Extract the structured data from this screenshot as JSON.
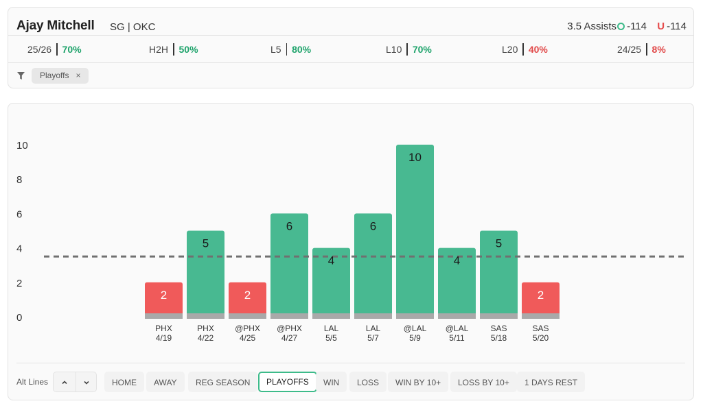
{
  "player": {
    "name": "Ajay Mitchell",
    "meta": "SG | OKC",
    "prop": "3.5 Assists",
    "over_odds": "-114",
    "under_odds": "-114",
    "over_icon": "over-circle-icon",
    "under_letter": "U"
  },
  "hit_rates": [
    {
      "label": "25/26",
      "value": "70%",
      "status": "good"
    },
    {
      "label": "H2H",
      "value": "50%",
      "status": "good"
    },
    {
      "label": "L5",
      "value": "80%",
      "status": "good"
    },
    {
      "label": "L10",
      "value": "70%",
      "status": "good"
    },
    {
      "label": "L20",
      "value": "40%",
      "status": "bad"
    },
    {
      "label": "24/25",
      "value": "8%",
      "status": "bad"
    }
  ],
  "filters": {
    "icon": "funnel-icon",
    "chip_label": "Playoffs",
    "chip_close": "×"
  },
  "colors": {
    "over": "#48b991",
    "under": "#f05a5a",
    "good_text": "#1ea36b",
    "bad_text": "#e14848",
    "line": "#707070"
  },
  "chart_data": {
    "type": "bar",
    "categories": [
      "PHX 4/19",
      "PHX 4/22",
      "@PHX 4/25",
      "@PHX 4/27",
      "LAL 5/5",
      "LAL 5/7",
      "@LAL 5/9",
      "@LAL 5/11",
      "SAS 5/18",
      "SAS 5/20"
    ],
    "opponents": [
      "PHX",
      "PHX",
      "@PHX",
      "@PHX",
      "LAL",
      "LAL",
      "@LAL",
      "@LAL",
      "SAS",
      "SAS"
    ],
    "dates": [
      "4/19",
      "4/22",
      "4/25",
      "4/27",
      "5/5",
      "5/7",
      "5/9",
      "5/11",
      "5/18",
      "5/20"
    ],
    "values": [
      2,
      5,
      2,
      6,
      4,
      6,
      10,
      4,
      5,
      2
    ],
    "line": 3.5,
    "ylim": [
      0,
      10
    ],
    "yticks": [
      0,
      2,
      4,
      6,
      8,
      10
    ],
    "title": "",
    "xlabel": "",
    "ylabel": ""
  },
  "controls": {
    "alt_lines_label": "Alt Lines",
    "up_icon": "chevron-up-icon",
    "down_icon": "chevron-down-icon",
    "up_glyph": "⌃",
    "down_glyph": "⌄",
    "buttons": [
      {
        "label": "HOME",
        "active": false
      },
      {
        "label": "AWAY",
        "active": false
      },
      {
        "label": "REG SEASON",
        "active": false
      },
      {
        "label": "PLAYOFFS",
        "active": true
      },
      {
        "label": "WIN",
        "active": false
      },
      {
        "label": "LOSS",
        "active": false
      },
      {
        "label": "WIN BY 10+",
        "active": false
      },
      {
        "label": "LOSS BY 10+",
        "active": false
      },
      {
        "label": "1 DAYS REST",
        "active": false
      }
    ]
  }
}
